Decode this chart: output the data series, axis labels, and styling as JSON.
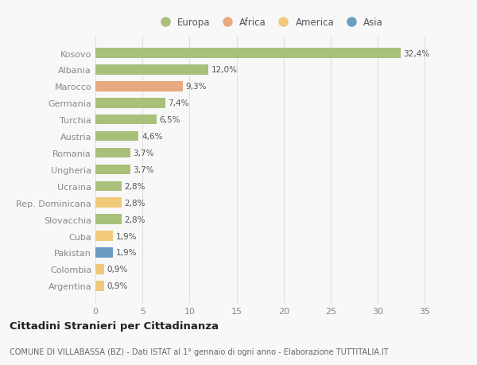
{
  "categories": [
    "Kosovo",
    "Albania",
    "Marocco",
    "Germania",
    "Turchia",
    "Austria",
    "Romania",
    "Ungheria",
    "Ucraina",
    "Rep. Dominicana",
    "Slovacchia",
    "Cuba",
    "Pakistan",
    "Colombia",
    "Argentina"
  ],
  "values": [
    32.4,
    12.0,
    9.3,
    7.4,
    6.5,
    4.6,
    3.7,
    3.7,
    2.8,
    2.8,
    2.8,
    1.9,
    1.9,
    0.9,
    0.9
  ],
  "labels": [
    "32,4%",
    "12,0%",
    "9,3%",
    "7,4%",
    "6,5%",
    "4,6%",
    "3,7%",
    "3,7%",
    "2,8%",
    "2,8%",
    "2,8%",
    "1,9%",
    "1,9%",
    "0,9%",
    "0,9%"
  ],
  "colors": [
    "#a8c07a",
    "#a8c07a",
    "#e8a882",
    "#a8c07a",
    "#a8c07a",
    "#a8c07a",
    "#a8c07a",
    "#a8c07a",
    "#a8c07a",
    "#f0c97a",
    "#a8c07a",
    "#f0c97a",
    "#6b9dc2",
    "#f0c97a",
    "#f0c97a"
  ],
  "legend_labels": [
    "Europa",
    "Africa",
    "America",
    "Asia"
  ],
  "legend_colors": [
    "#a8c07a",
    "#e8a882",
    "#f0c97a",
    "#6b9dc2"
  ],
  "title": "Cittadini Stranieri per Cittadinanza",
  "subtitle": "COMUNE DI VILLABASSA (BZ) - Dati ISTAT al 1° gennaio di ogni anno - Elaborazione TUTTITALIA.IT",
  "xlim": [
    0,
    37
  ],
  "xticks": [
    0,
    5,
    10,
    15,
    20,
    25,
    30,
    35
  ],
  "background_color": "#f8f8f8",
  "grid_color": "#e0e0e0",
  "bar_height": 0.6,
  "label_fontsize": 7.5,
  "ytick_fontsize": 8,
  "xtick_fontsize": 8,
  "legend_fontsize": 8.5,
  "title_fontsize": 9.5,
  "subtitle_fontsize": 7
}
